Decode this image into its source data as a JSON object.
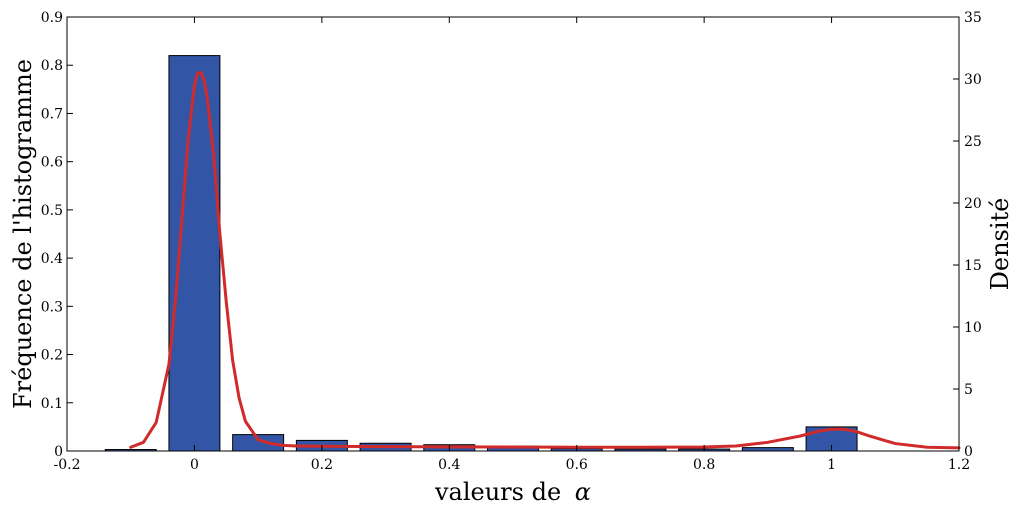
{
  "chart_data": {
    "type": "bar",
    "title": "",
    "xlabel": "valeurs de",
    "xlabel_symbol": "α",
    "ylabel_left": "Fréquence de l'histogramme",
    "ylabel_right": "Densité",
    "xlim": [
      -0.2,
      1.2
    ],
    "ylim_left": [
      0,
      0.9
    ],
    "ylim_right": [
      0,
      35
    ],
    "x_ticks": [
      "-0.2",
      "0",
      "0.2",
      "0.4",
      "0.6",
      "0.8",
      "1",
      "1.2"
    ],
    "y_left_ticks": [
      "0",
      "0.1",
      "0.2",
      "0.3",
      "0.4",
      "0.5",
      "0.6",
      "0.7",
      "0.8",
      "0.9"
    ],
    "y_right_ticks": [
      "0",
      "5",
      "10",
      "15",
      "20",
      "25",
      "30",
      "35"
    ],
    "grid": false,
    "legend": "none",
    "bar_color": "#3355a5",
    "bar_edge_color": "#000000",
    "line_color": "#d02a2a",
    "bars": [
      {
        "x": -0.1,
        "value": 0.003
      },
      {
        "x": 0.0,
        "value": 0.82
      },
      {
        "x": 0.1,
        "value": 0.034
      },
      {
        "x": 0.2,
        "value": 0.022
      },
      {
        "x": 0.3,
        "value": 0.016
      },
      {
        "x": 0.4,
        "value": 0.013
      },
      {
        "x": 0.5,
        "value": 0.01
      },
      {
        "x": 0.6,
        "value": 0.005
      },
      {
        "x": 0.7,
        "value": 0.004
      },
      {
        "x": 0.8,
        "value": 0.004
      },
      {
        "x": 0.9,
        "value": 0.007
      },
      {
        "x": 1.0,
        "value": 0.05
      }
    ],
    "bar_width": 0.08,
    "density_series": {
      "x": [
        -0.1,
        -0.08,
        -0.06,
        -0.04,
        -0.03,
        -0.02,
        -0.01,
        0.0,
        0.005,
        0.01,
        0.015,
        0.02,
        0.03,
        0.04,
        0.05,
        0.06,
        0.07,
        0.08,
        0.1,
        0.12,
        0.14,
        0.16,
        0.2,
        0.3,
        0.4,
        0.5,
        0.6,
        0.7,
        0.8,
        0.85,
        0.9,
        0.95,
        0.98,
        1.0,
        1.02,
        1.04,
        1.06,
        1.1,
        1.15,
        1.2
      ],
      "y": [
        0.3,
        0.7,
        2.3,
        7.0,
        12.0,
        18.5,
        25.0,
        29.5,
        30.5,
        30.5,
        30.0,
        28.5,
        24.0,
        17.5,
        12.0,
        7.3,
        4.3,
        2.4,
        0.9,
        0.6,
        0.45,
        0.4,
        0.38,
        0.35,
        0.33,
        0.32,
        0.3,
        0.3,
        0.32,
        0.4,
        0.7,
        1.2,
        1.6,
        1.75,
        1.75,
        1.55,
        1.2,
        0.6,
        0.3,
        0.25
      ]
    }
  }
}
